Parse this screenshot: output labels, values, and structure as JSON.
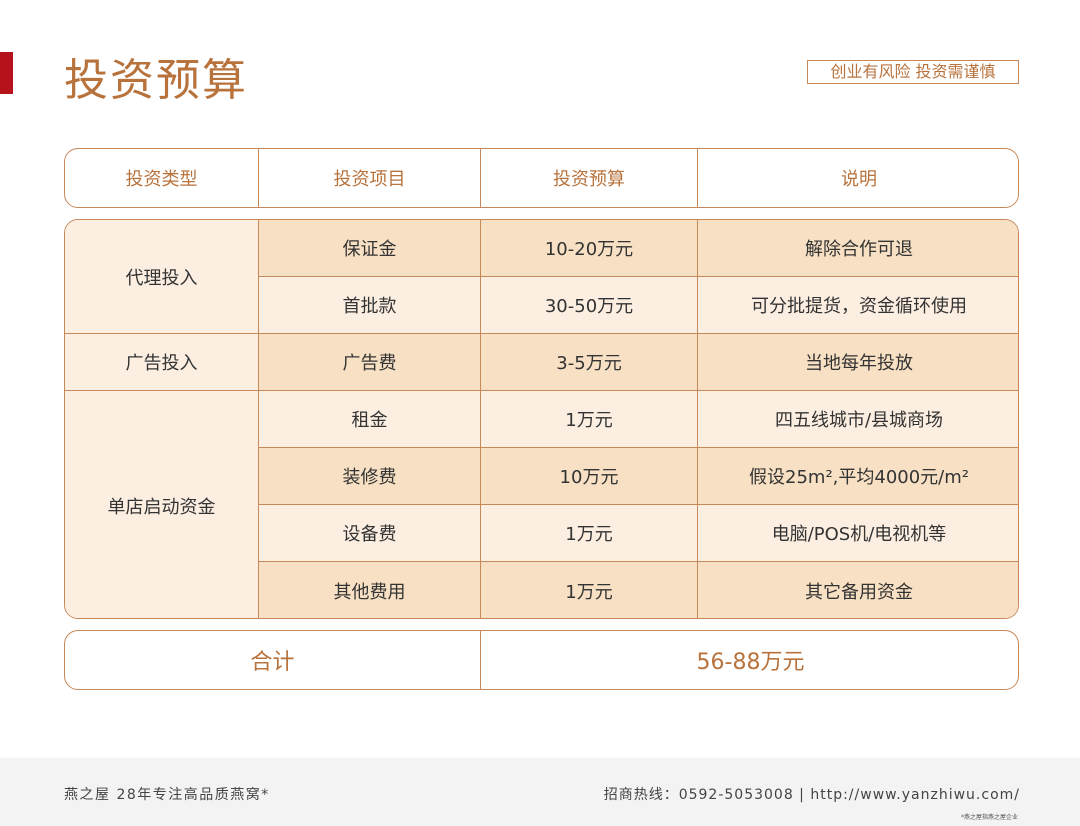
{
  "title": "投资预算",
  "slogan": "创业有风险 投资需谨慎",
  "headers": [
    "投资类型",
    "投资项目",
    "投资预算",
    "说明"
  ],
  "groups": [
    "代理投入",
    "广告投入",
    "单店启动资金"
  ],
  "rows": [
    {
      "item": "保证金",
      "budget": "10-20万元",
      "note": "解除合作可退"
    },
    {
      "item": "首批款",
      "budget": "30-50万元",
      "note": "可分批提货，资金循环使用"
    },
    {
      "item": "广告费",
      "budget": "3-5万元",
      "note": "当地每年投放"
    },
    {
      "item": "租金",
      "budget": "1万元",
      "note": "四五线城市/县城商场"
    },
    {
      "item": "装修费",
      "budget": "10万元",
      "note": "假设25m²,平均4000元/m²"
    },
    {
      "item": "设备费",
      "budget": "1万元",
      "note": "电脑/POS机/电视机等"
    },
    {
      "item": "其他费用",
      "budget": "1万元",
      "note": "其它备用资金"
    }
  ],
  "total": {
    "label": "合计",
    "value": "56-88万元"
  },
  "footer": {
    "left": "燕之屋 28年专注高品质燕窝*",
    "right": "招商热线：0592-5053008 | http://www.yanzhiwu.com/",
    "fine": "*燕之屋指燕之屋企业"
  },
  "colors": {
    "accent": "#b8733d",
    "border": "#c8895a",
    "row_light": "#fcefe2",
    "row_dark": "#f7e0c3",
    "brand_red": "#b5121b"
  }
}
